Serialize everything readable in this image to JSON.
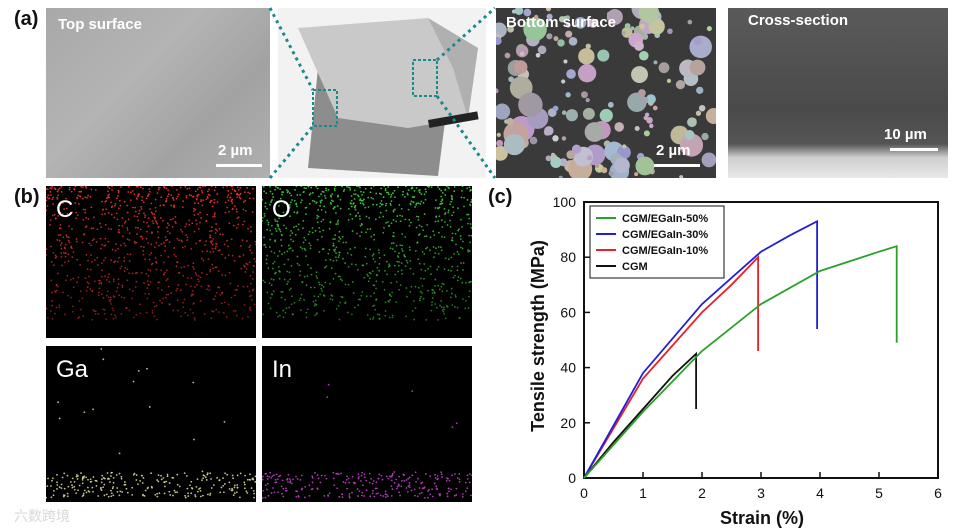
{
  "panels": {
    "a": {
      "letter": "(a)",
      "top_label": "Top surface",
      "top_scale": "2 µm",
      "bottom_label": "Bottom surface",
      "bottom_scale": "2 µm",
      "cross_label": "Cross-section",
      "cross_scale": "10 µm"
    },
    "b": {
      "letter": "(b)",
      "elements": [
        "C",
        "O",
        "Ga",
        "In"
      ],
      "colors": {
        "C": "#e03030",
        "O": "#3ec33e",
        "Ga": "#d8d89a",
        "In": "#c040c8"
      }
    },
    "c": {
      "letter": "(c)"
    }
  },
  "watermark": "六数跨境",
  "chart_data": {
    "type": "line",
    "xlabel": "Strain (%)",
    "ylabel": "Tensile strength (MPa)",
    "xlim": [
      0,
      6
    ],
    "ylim": [
      0,
      100
    ],
    "xticks": [
      "0",
      "1",
      "2",
      "3",
      "4",
      "5",
      "6"
    ],
    "yticks": [
      "0",
      "20",
      "40",
      "60",
      "80",
      "100"
    ],
    "legend_position": "top-left",
    "series": [
      {
        "name": "CGM/EGaIn-50%",
        "color": "#2ca02c",
        "x": [
          0,
          1,
          2,
          3,
          4,
          5,
          5.3,
          5.3
        ],
        "y": [
          0,
          24,
          46,
          63,
          75,
          82,
          84,
          49
        ]
      },
      {
        "name": "CGM/EGaIn-30%",
        "color": "#1f1fd6",
        "x": [
          0,
          1,
          2,
          3,
          3.5,
          3.95,
          3.95
        ],
        "y": [
          0,
          38,
          63,
          82,
          88,
          93,
          54
        ]
      },
      {
        "name": "CGM/EGaIn-10%",
        "color": "#e8202a",
        "x": [
          0,
          1,
          2,
          2.5,
          2.95,
          2.95
        ],
        "y": [
          0,
          36,
          60,
          70,
          80,
          46
        ]
      },
      {
        "name": "CGM",
        "color": "#111111",
        "x": [
          0,
          0.5,
          1,
          1.5,
          1.9,
          1.9
        ],
        "y": [
          0,
          13,
          25,
          37,
          45,
          25
        ]
      }
    ]
  }
}
